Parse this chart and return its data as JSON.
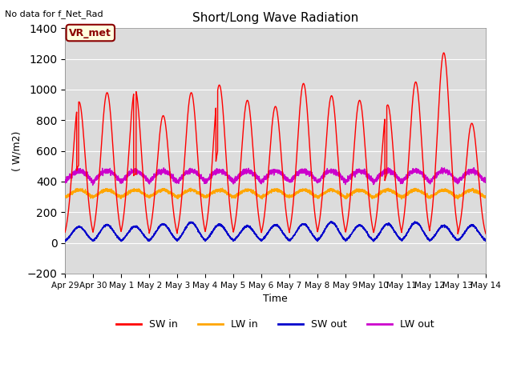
{
  "title": "Short/Long Wave Radiation",
  "xlabel": "Time",
  "ylabel": "( W/m2)",
  "top_label": "No data for f_Net_Rad",
  "station_label": "VR_met",
  "ylim": [
    -200,
    1400
  ],
  "yticks": [
    -200,
    0,
    200,
    400,
    600,
    800,
    1000,
    1200,
    1400
  ],
  "xtick_labels": [
    "Apr 29",
    "Apr 30",
    "May 1",
    "May 2",
    "May 3",
    "May 4",
    "May 5",
    "May 6",
    "May 7",
    "May 8",
    "May 9",
    "May 10",
    "May 11",
    "May 12",
    "May 13",
    "May 14"
  ],
  "colors": {
    "SW_in": "#ff0000",
    "LW_in": "#ffa500",
    "SW_out": "#0000cc",
    "LW_out": "#cc00cc"
  },
  "background_color": "#dcdcdc",
  "legend_labels": [
    "SW in",
    "LW in",
    "SW out",
    "LW out"
  ]
}
